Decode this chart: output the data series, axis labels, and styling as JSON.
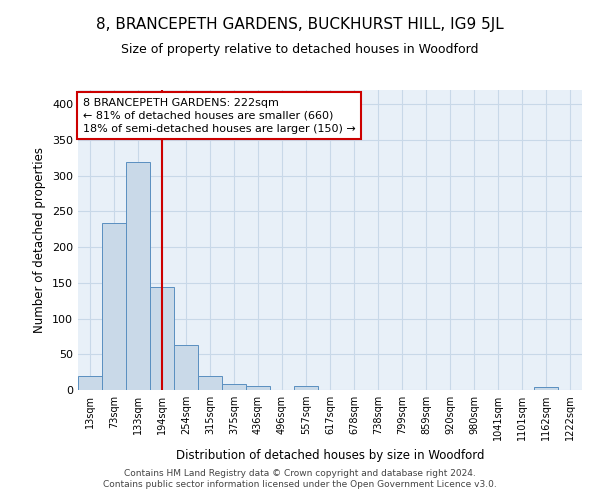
{
  "title": "8, BRANCEPETH GARDENS, BUCKHURST HILL, IG9 5JL",
  "subtitle": "Size of property relative to detached houses in Woodford",
  "xlabel": "Distribution of detached houses by size in Woodford",
  "ylabel": "Number of detached properties",
  "bar_labels": [
    "13sqm",
    "73sqm",
    "133sqm",
    "194sqm",
    "254sqm",
    "315sqm",
    "375sqm",
    "436sqm",
    "496sqm",
    "557sqm",
    "617sqm",
    "678sqm",
    "738sqm",
    "799sqm",
    "859sqm",
    "920sqm",
    "980sqm",
    "1041sqm",
    "1101sqm",
    "1162sqm",
    "1222sqm"
  ],
  "bar_values": [
    20,
    234,
    319,
    144,
    63,
    20,
    8,
    5,
    0,
    5,
    0,
    0,
    0,
    0,
    0,
    0,
    0,
    0,
    0,
    4,
    0
  ],
  "bar_color": "#c9d9e8",
  "bar_edgecolor": "#5a8fc0",
  "vline_x": 3.5,
  "vline_color": "#cc0000",
  "annotation_text": "8 BRANCEPETH GARDENS: 222sqm\n← 81% of detached houses are smaller (660)\n18% of semi-detached houses are larger (150) →",
  "annotation_box_color": "#ffffff",
  "annotation_box_edgecolor": "#cc0000",
  "ylim": [
    0,
    420
  ],
  "yticks": [
    0,
    50,
    100,
    150,
    200,
    250,
    300,
    350,
    400
  ],
  "grid_color": "#c8d8e8",
  "background_color": "#e8f0f8",
  "footer_line1": "Contains HM Land Registry data © Crown copyright and database right 2024.",
  "footer_line2": "Contains public sector information licensed under the Open Government Licence v3.0."
}
